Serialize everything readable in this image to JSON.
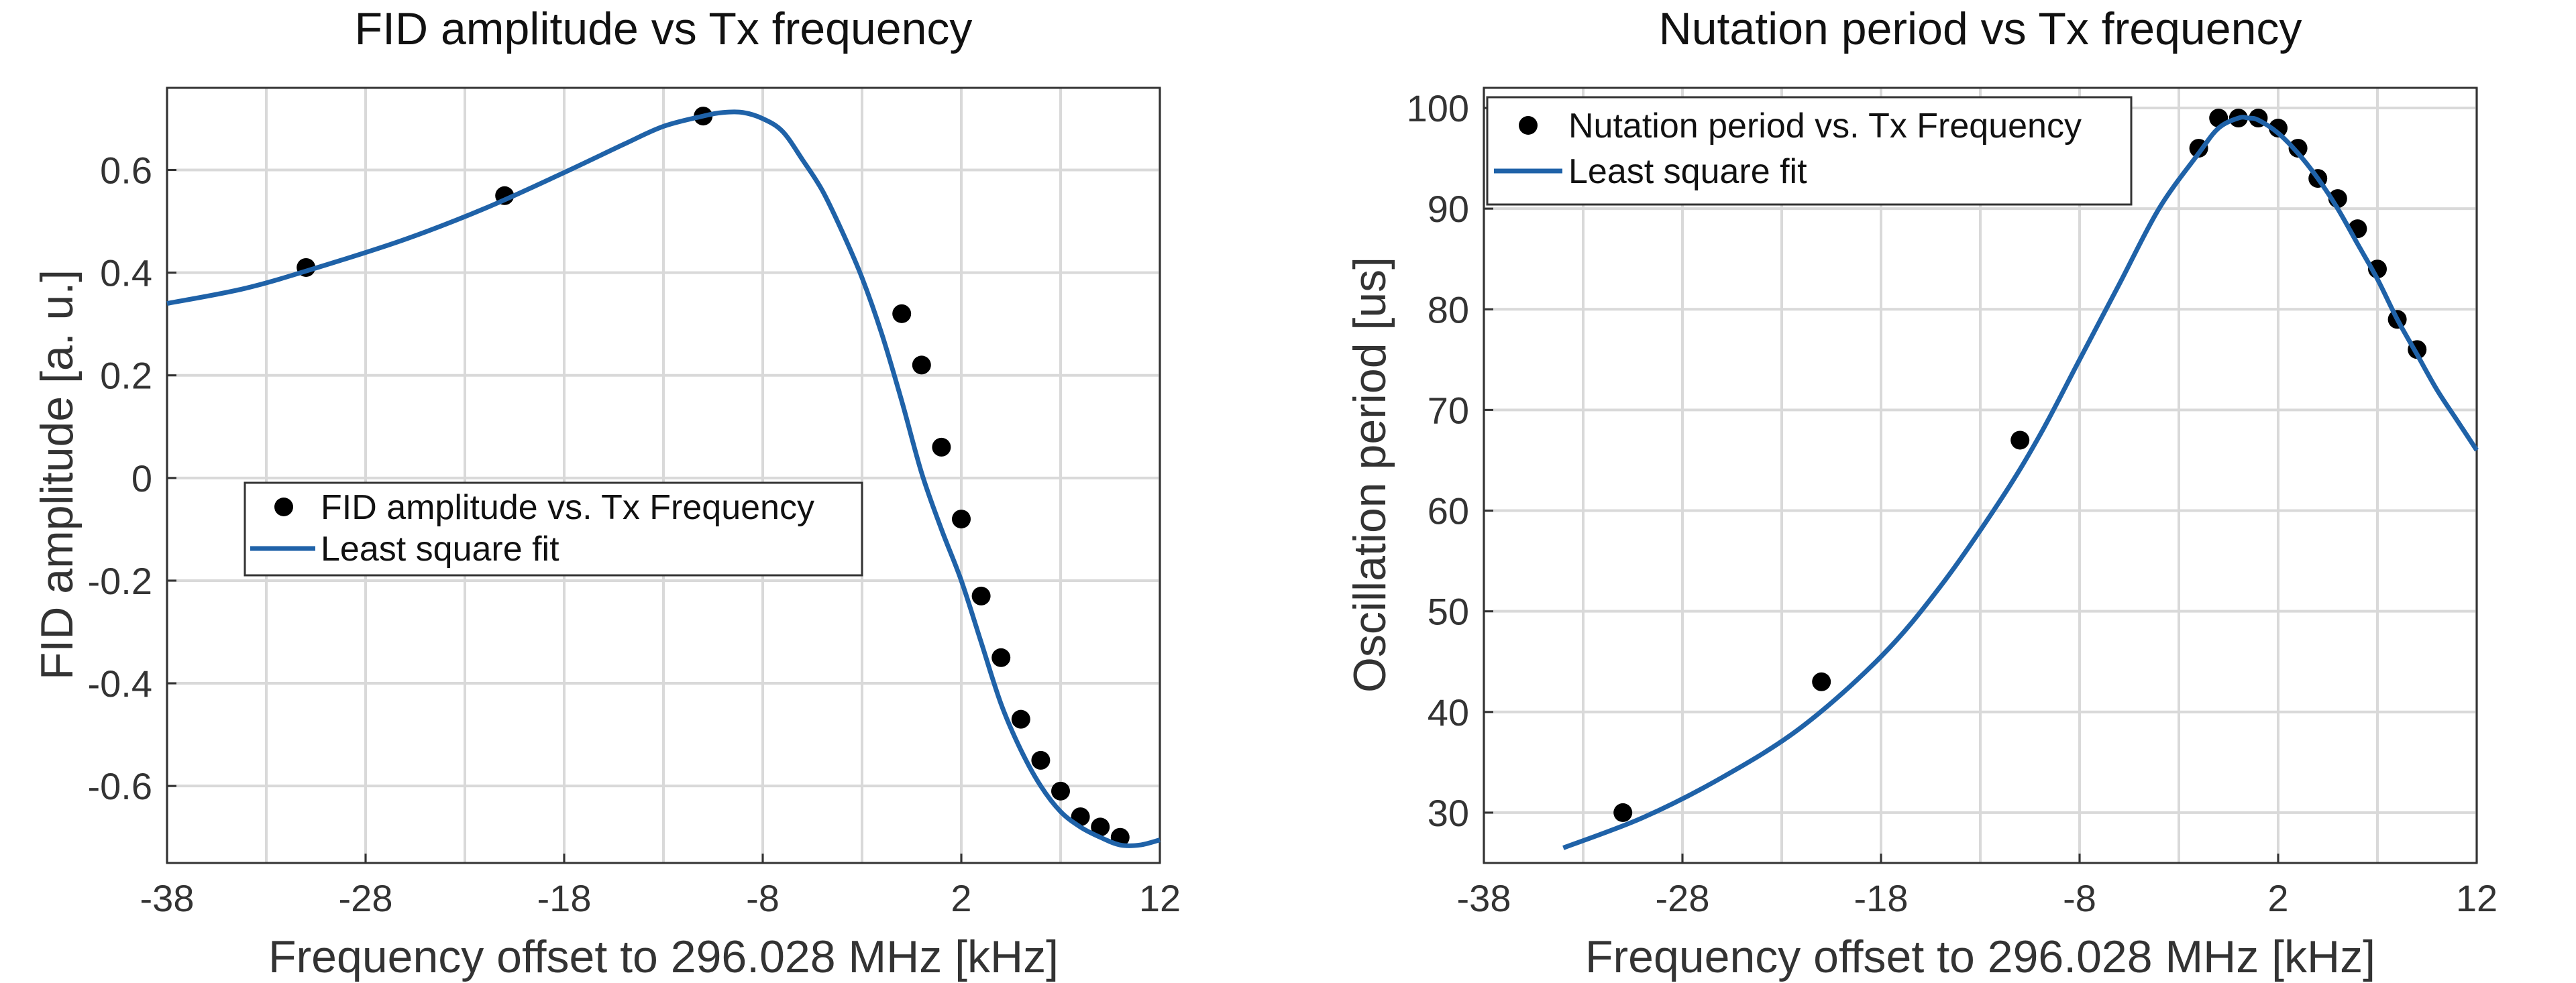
{
  "chart_data": [
    {
      "type": "scatter",
      "title": "FID amplitude vs Tx frequency",
      "xlabel": "Frequency offset to 296.028 MHz [kHz]",
      "ylabel": "FID amplitude [a. u.]",
      "xlim": [
        -38,
        12
      ],
      "ylim": [
        -0.75,
        0.76
      ],
      "grid": true,
      "x_ticks": [
        -38,
        -33,
        -28,
        -23,
        -18,
        -13,
        -8,
        -3,
        2,
        7,
        12
      ],
      "x_tick_labels": [
        "-38",
        "-28",
        "-18",
        "-8",
        "2",
        "12"
      ],
      "y_ticks": [
        -0.6,
        -0.4,
        -0.2,
        0,
        0.2,
        0.4,
        0.6
      ],
      "y_tick_labels": [
        "-0.6",
        "-0.4",
        "-0.2",
        "0",
        "0.2",
        "0.4",
        "0.6"
      ],
      "legend_position": "middle-left",
      "series": [
        {
          "name": "FID amplitude vs. Tx Frequency",
          "kind": "points",
          "color": "#000000",
          "x": [
            -31,
            -21,
            -11,
            -1,
            0,
            1,
            2,
            3,
            4,
            5,
            6,
            7,
            8,
            9,
            10
          ],
          "y": [
            0.41,
            0.55,
            0.705,
            0.32,
            0.22,
            0.06,
            -0.08,
            -0.23,
            -0.35,
            -0.47,
            -0.55,
            -0.61,
            -0.66,
            -0.68,
            -0.7
          ]
        },
        {
          "name": "Least square fit",
          "kind": "line",
          "color": "#1f62a8",
          "x": [
            -38,
            -34,
            -30,
            -26,
            -22,
            -18,
            -15,
            -13,
            -11,
            -10,
            -9,
            -8,
            -7,
            -6,
            -5,
            -4,
            -3,
            -2,
            -1,
            0,
            1,
            2,
            3,
            4,
            5,
            6,
            7,
            8,
            9,
            10,
            11,
            12
          ],
          "y": [
            0.34,
            0.37,
            0.415,
            0.465,
            0.525,
            0.595,
            0.65,
            0.685,
            0.705,
            0.712,
            0.712,
            0.7,
            0.675,
            0.62,
            0.56,
            0.48,
            0.39,
            0.28,
            0.15,
            0.01,
            -0.1,
            -0.2,
            -0.32,
            -0.44,
            -0.53,
            -0.6,
            -0.65,
            -0.68,
            -0.7,
            -0.715,
            -0.715,
            -0.705
          ]
        }
      ]
    },
    {
      "type": "scatter",
      "title": "Nutation period vs Tx frequency",
      "xlabel": "Frequency offset to 296.028 MHz [kHz]",
      "ylabel": "Oscillation period [us]",
      "xlim": [
        -38,
        12
      ],
      "ylim": [
        25,
        102
      ],
      "grid": true,
      "x_ticks": [
        -38,
        -33,
        -28,
        -23,
        -18,
        -13,
        -8,
        -3,
        2,
        7,
        12
      ],
      "x_tick_labels": [
        "-38",
        "-28",
        "-18",
        "-8",
        "2",
        "12"
      ],
      "y_ticks": [
        30,
        40,
        50,
        60,
        70,
        80,
        90,
        100
      ],
      "y_tick_labels": [
        "30",
        "40",
        "50",
        "60",
        "70",
        "80",
        "90",
        "100"
      ],
      "legend_position": "top-left",
      "series": [
        {
          "name": "Nutation period vs. Tx Frequency",
          "kind": "points",
          "color": "#000000",
          "x": [
            -31,
            -21,
            -11,
            -2,
            -1,
            0,
            1,
            2,
            3,
            4,
            5,
            6,
            7,
            8,
            9
          ],
          "y": [
            30,
            43,
            67,
            96,
            99,
            99,
            99,
            98,
            96,
            93,
            91,
            88,
            84,
            79,
            76
          ]
        },
        {
          "name": "Least square fit",
          "kind": "line",
          "color": "#1f62a8",
          "x": [
            -34,
            -30,
            -26,
            -22,
            -18,
            -15,
            -12,
            -10,
            -8,
            -6,
            -4,
            -2,
            -1,
            0,
            0.5,
            1,
            2,
            3,
            4,
            5,
            6,
            7,
            8,
            9,
            10,
            11,
            12
          ],
          "y": [
            26.5,
            29.5,
            33.5,
            38.5,
            45.5,
            52.5,
            61,
            67.5,
            75,
            82.5,
            90,
            95.5,
            98,
            99,
            99,
            98.8,
            97.5,
            95.5,
            93,
            90,
            86.5,
            83,
            79,
            75.5,
            72,
            69,
            66
          ]
        }
      ]
    }
  ]
}
